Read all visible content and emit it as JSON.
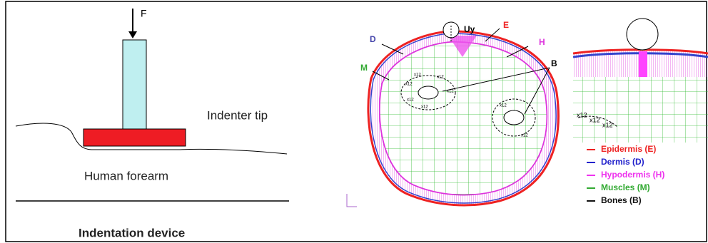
{
  "left_panel": {
    "force_label": "F",
    "indenter_label": "Indenter tip",
    "forearm_label": "Human forearm",
    "device_label": "Indentation device"
  },
  "section_panel": {
    "displacement_label": "Uy",
    "epidermis_tag": "E",
    "dermis_tag": "D",
    "hypodermis_tag": "H",
    "muscles_tag": "M",
    "bones_tag": "B",
    "mesh_labels": [
      "x12",
      "x12",
      "x12",
      "x12",
      "x12",
      "x12",
      "x12",
      "x12"
    ]
  },
  "zoom_panel": {
    "mesh_labels": [
      "x12",
      "x12",
      "x12"
    ]
  },
  "legend": {
    "items": [
      "Epidermis (E)",
      "Dermis (D)",
      "Hypodermis (H)",
      "Muscles (M)",
      "Bones (B)"
    ]
  }
}
